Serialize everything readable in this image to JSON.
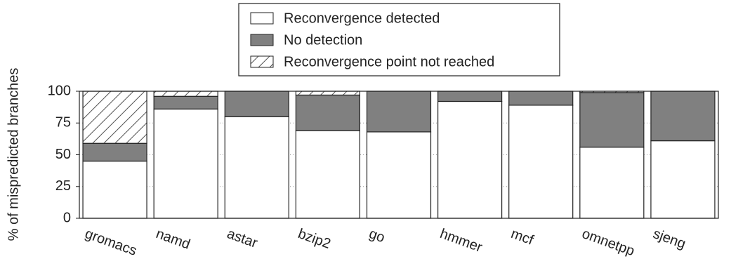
{
  "chart_data": {
    "type": "stacked_bar",
    "y_label": "% of mispredicted branches",
    "categories": [
      "gromacs",
      "namd",
      "astar",
      "bzip2",
      "go",
      "hmmer",
      "mcf",
      "omnetpp",
      "sjeng"
    ],
    "series": [
      {
        "name": "Reconvergence detected",
        "color": "#ffffff",
        "hatch": false,
        "values": [
          45,
          86,
          80,
          69,
          68,
          92,
          89,
          56,
          61
        ]
      },
      {
        "name": "No detection",
        "color": "#808080",
        "hatch": false,
        "values": [
          14,
          10,
          20,
          28,
          32,
          8,
          11,
          43,
          39
        ]
      },
      {
        "name": "Reconvergence point not reached",
        "color": "#ffffff",
        "hatch": true,
        "values": [
          41,
          4,
          0,
          3,
          0,
          0,
          0,
          1,
          0
        ]
      }
    ],
    "ylim": [
      0,
      100
    ],
    "yticks": [
      0,
      25,
      50,
      75,
      100
    ],
    "grid": true
  }
}
